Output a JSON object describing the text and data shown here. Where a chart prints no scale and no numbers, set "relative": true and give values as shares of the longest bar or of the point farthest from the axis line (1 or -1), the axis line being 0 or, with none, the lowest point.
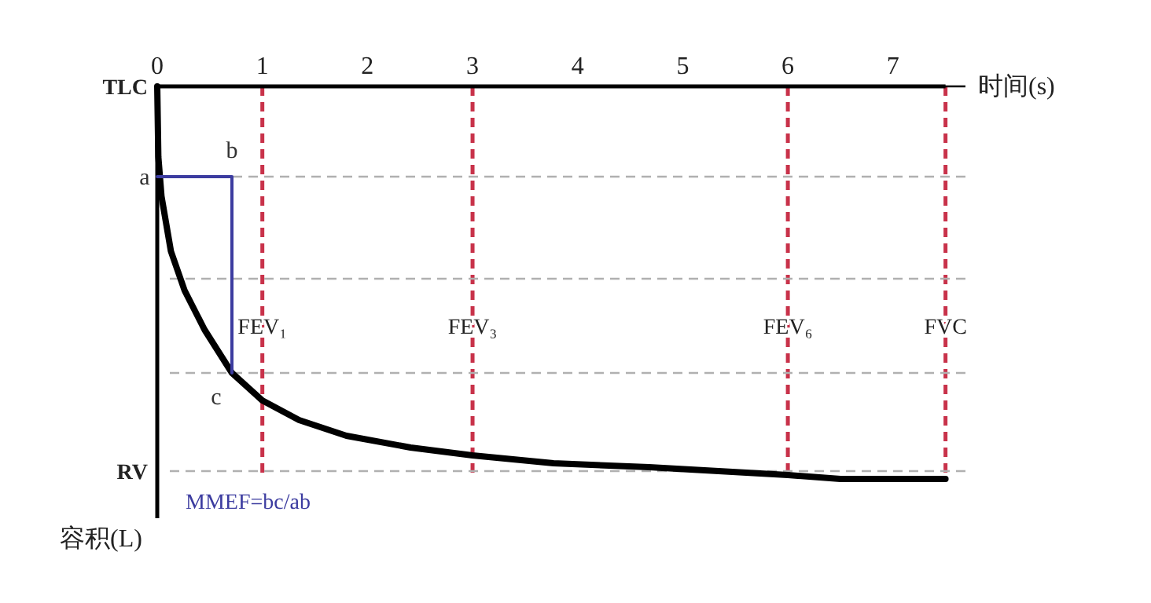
{
  "chart_data": {
    "type": "line",
    "relative": true,
    "xlabel": "时间(s)",
    "ylabel": "容积(L)",
    "xlim": [
      0,
      7.6
    ],
    "xticks": [
      0,
      1,
      2,
      3,
      4,
      5,
      6,
      7
    ],
    "line_style": "solid",
    "series": [
      {
        "color": "#000000",
        "x": [
          0,
          0.01,
          0.04,
          0.13,
          0.26,
          0.45,
          0.71,
          1.0,
          1.35,
          1.8,
          2.41,
          3.0,
          3.77,
          4.68,
          6.0,
          6.5,
          7.5
        ],
        "values": [
          0,
          -0.18,
          -0.28,
          -0.42,
          -0.52,
          -0.62,
          -0.73,
          -0.8,
          -0.85,
          -0.89,
          -0.92,
          -0.94,
          -0.96,
          -0.97,
          -0.99,
          -1,
          -1
        ]
      },
      {
        "color": "#3c3ca0",
        "x": [
          0,
          0.71,
          0.71
        ],
        "values": [
          -0.23,
          -0.23,
          -0.73
        ]
      }
    ],
    "ref_lines": [
      {
        "axis": "x",
        "value": 1,
        "label": "FEV₁",
        "color": "#c8324a",
        "line_style": "dashed"
      },
      {
        "axis": "x",
        "value": 3,
        "label": "FEV₃",
        "color": "#c8324a",
        "line_style": "dashed"
      },
      {
        "axis": "x",
        "value": 6,
        "label": "FEV₆",
        "color": "#c8324a",
        "line_style": "dashed"
      },
      {
        "axis": "x",
        "value": 7.5,
        "label": "FVC",
        "color": "#c8324a",
        "line_style": "dashed"
      },
      {
        "axis": "y",
        "value": 0,
        "label": "TLC",
        "color": "#000000",
        "line_style": "solid"
      },
      {
        "axis": "y",
        "value": -0.23,
        "color": "#b0b0b0",
        "line_style": "dashed"
      },
      {
        "axis": "y",
        "value": -0.49,
        "color": "#b0b0b0",
        "line_style": "dashed"
      },
      {
        "axis": "y",
        "value": -0.73,
        "color": "#b0b0b0",
        "line_style": "dashed"
      },
      {
        "axis": "y",
        "value": -0.98,
        "label": "RV",
        "color": "#b0b0b0",
        "line_style": "dashed"
      }
    ],
    "annotations": [
      "a",
      "b",
      "c",
      "MMEF=bc/ab"
    ]
  }
}
